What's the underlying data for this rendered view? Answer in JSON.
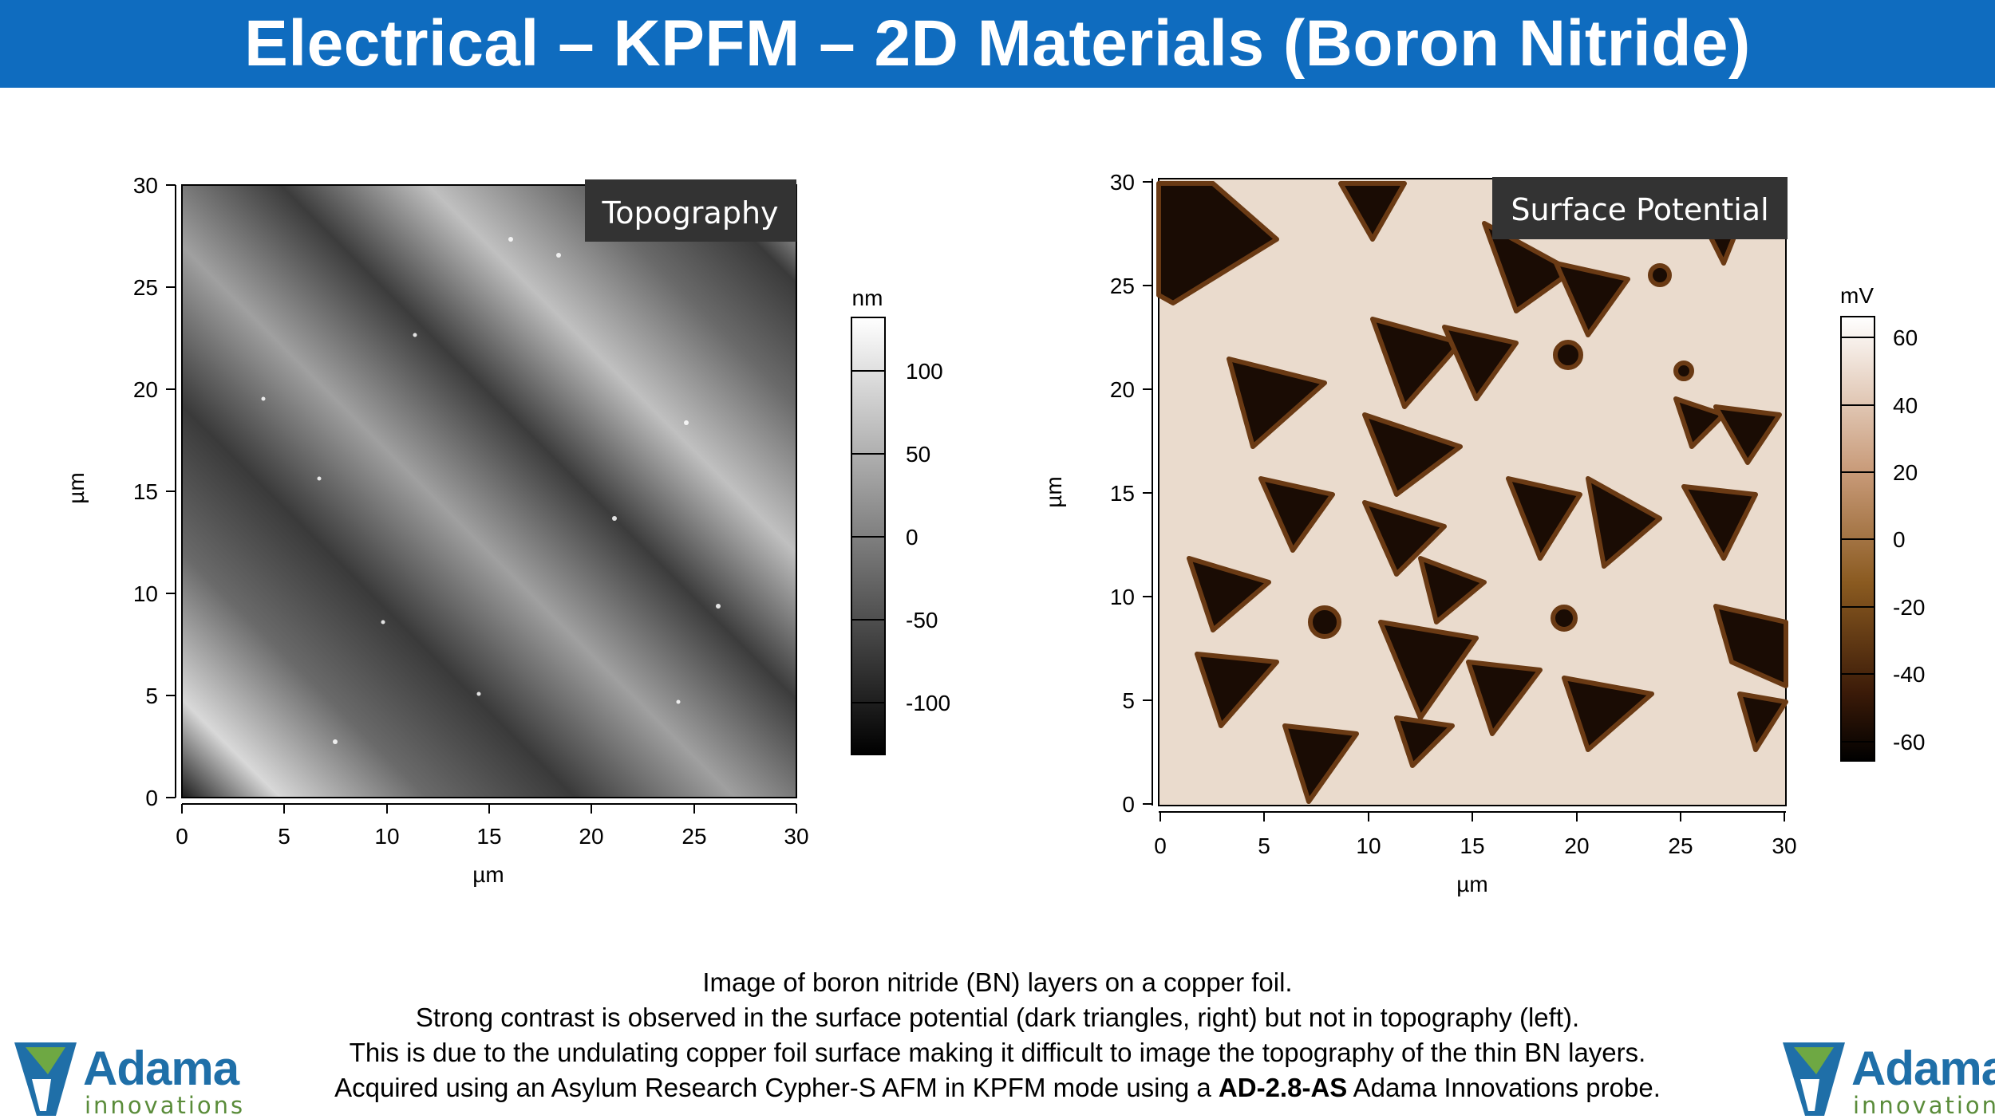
{
  "title": "Electrical – KPFM – 2D Materials (Boron Nitride)",
  "left_panel": {
    "label": "Topography",
    "y_ticks": [
      "30",
      "25",
      "20",
      "15",
      "10",
      "5",
      "0"
    ],
    "x_ticks": [
      "0",
      "5",
      "10",
      "15",
      "20",
      "25",
      "30"
    ],
    "x_axis_label": "µm",
    "y_axis_label": "µm",
    "colorbar_unit": "nm",
    "colorbar_ticks": [
      "100",
      "50",
      "0",
      "-50",
      "-100"
    ]
  },
  "right_panel": {
    "label": "Surface Potential",
    "y_ticks": [
      "30",
      "25",
      "20",
      "15",
      "10",
      "5",
      "0"
    ],
    "x_ticks": [
      "0",
      "5",
      "10",
      "15",
      "20",
      "25",
      "30"
    ],
    "x_axis_label": "µm",
    "y_axis_label": "µm",
    "colorbar_unit": "mV",
    "colorbar_ticks": [
      "60",
      "40",
      "20",
      "0",
      "-20",
      "-40",
      "-60"
    ]
  },
  "caption": {
    "line1": "Image of boron nitride (BN) layers on a copper foil.",
    "line2": "Strong contrast is observed in the surface potential (dark triangles, right) but not in topography (left).",
    "line3": "This is due to the undulating copper foil surface making it difficult to image the topography of the thin BN layers.",
    "line4_pre": "Acquired using an Asylum Research Cypher-S AFM in KPFM mode using a ",
    "line4_bold": "AD-2.8-AS",
    "line4_post": " Adama Innovations probe."
  },
  "logo": {
    "brand": "Adama",
    "sub": "innovations"
  },
  "colors": {
    "banner": "#0f6cbf",
    "logo_blue": "#1f6fa8",
    "logo_green": "#5a8c3a"
  }
}
